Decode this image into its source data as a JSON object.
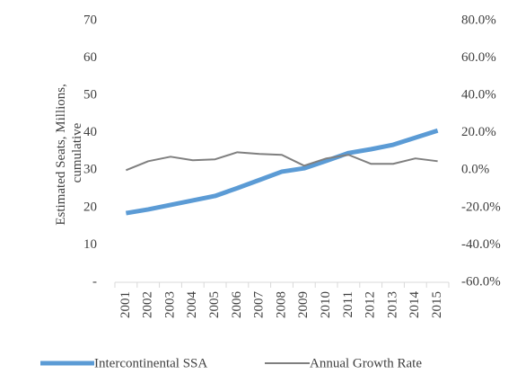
{
  "chart_data": {
    "type": "line",
    "y_label": [
      "Estimated Seats, Millions,",
      "cumulative"
    ],
    "categories": [
      "2001",
      "2002",
      "2003",
      "2004",
      "2005",
      "2006",
      "2007",
      "2008",
      "2009",
      "2010",
      "2011",
      "2012",
      "2013",
      "2014",
      "2015"
    ],
    "series": [
      {
        "name": "Intercontinental SSA",
        "color": "#5b9bd5",
        "width": 5,
        "values": [
          18.5,
          19.5,
          20.7,
          21.9,
          23.1,
          25.2,
          27.4,
          29.6,
          30.5,
          32.5,
          34.6,
          35.6,
          36.8,
          38.7,
          40.6
        ]
      },
      {
        "name": "Annual Growth Rate",
        "color": "#7f7f7f",
        "width": 2,
        "axis": "y2",
        "values": [
          0,
          4.8,
          7.2,
          5.3,
          5.8,
          9.6,
          8.7,
          8.2,
          2.4,
          6.3,
          8.2,
          3.4,
          3.4,
          6.3,
          4.8
        ]
      }
    ],
    "ylim": [
      0,
      70
    ],
    "yticks": [
      {
        "value": 0,
        "label": "-"
      },
      10,
      20,
      30,
      40,
      50,
      60,
      70
    ],
    "y2lim": [
      -60,
      80
    ],
    "y2ticks": [
      {
        "value": -60,
        "label": "-60.0%"
      },
      {
        "value": -40,
        "label": "-40.0%"
      },
      {
        "value": -20,
        "label": "-20.0%"
      },
      {
        "value": 0,
        "label": "0.0%"
      },
      {
        "value": 20,
        "label": "20.0%"
      },
      {
        "value": 40,
        "label": "40.0%"
      },
      {
        "value": 60,
        "label": "60.0%"
      },
      {
        "value": 80,
        "label": "80.0%"
      }
    ],
    "legend": "bottom"
  }
}
